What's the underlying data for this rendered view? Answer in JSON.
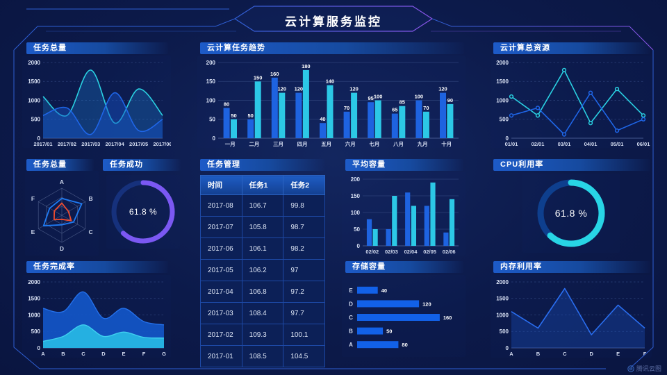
{
  "page": {
    "title": "云计算服务监控",
    "brand": "腾讯云图"
  },
  "panels": {
    "task_total_line": {
      "title": "任务总量"
    },
    "task_trend": {
      "title": "云计算任务趋势"
    },
    "total_resources": {
      "title": "云计算总资源"
    },
    "task_radar": {
      "title": "任务总量"
    },
    "task_success": {
      "title": "任务成功"
    },
    "task_table": {
      "title": "任务管理"
    },
    "avg_capacity": {
      "title": "平均容量"
    },
    "cpu_usage": {
      "title": "CPU利用率"
    },
    "completion": {
      "title": "任务完成率"
    },
    "storage": {
      "title": "存储容量"
    },
    "memory": {
      "title": "内存利用率"
    }
  },
  "colors": {
    "blue": "#1e63e0",
    "cyan": "#2cc8e6",
    "purple": "#7b58f2",
    "frame": "#2e5ed2",
    "bg": "#0c1a4a"
  },
  "table": {
    "headers": [
      "时间",
      "任务1",
      "任务2"
    ],
    "rows": [
      [
        "2017-08",
        "106.7",
        "99.8"
      ],
      [
        "2017-07",
        "105.8",
        "98.7"
      ],
      [
        "2017-06",
        "106.1",
        "98.2"
      ],
      [
        "2017-05",
        "106.2",
        "97"
      ],
      [
        "2017-04",
        "106.8",
        "97.2"
      ],
      [
        "2017-03",
        "108.4",
        "97.7"
      ],
      [
        "2017-02",
        "109.3",
        "100.1"
      ],
      [
        "2017-01",
        "108.5",
        "104.5"
      ]
    ]
  },
  "chart_data": [
    {
      "id": "task_total_line",
      "type": "area",
      "title": "任务总量",
      "smooth": true,
      "mr": 12,
      "x": [
        "2017/01",
        "2017/02",
        "2017/03",
        "2017/04",
        "2017/05",
        "2017/06"
      ],
      "series": [
        {
          "name": "series-cyan",
          "color": "#2ad1e2",
          "fill": "rgba(30,130,215,0.30)",
          "values": [
            1100,
            600,
            1800,
            400,
            1300,
            600
          ]
        },
        {
          "name": "series-blue",
          "color": "#1f66e8",
          "fill": "rgba(22,82,200,0.45)",
          "values": [
            600,
            800,
            100,
            1200,
            200,
            500
          ]
        }
      ],
      "ylim": [
        0,
        2000
      ],
      "yticks": [
        0,
        500,
        1000,
        1500,
        2000
      ]
    },
    {
      "id": "task_trend_bars",
      "type": "bar",
      "title": "云计算任务趋势",
      "labels": true,
      "categories": [
        "一月",
        "二月",
        "三月",
        "四月",
        "五月",
        "六月",
        "七月",
        "八月",
        "九月",
        "十月"
      ],
      "series": [
        {
          "name": "series-blue",
          "color": "#1e63e0",
          "values": [
            80,
            50,
            160,
            120,
            40,
            70,
            95,
            65,
            100,
            120
          ]
        },
        {
          "name": "series-cyan",
          "color": "#2cc8e6",
          "values": [
            50,
            150,
            120,
            180,
            140,
            120,
            100,
            85,
            70,
            90
          ]
        }
      ],
      "ylim": [
        0,
        200
      ],
      "yticks": [
        0,
        50,
        100,
        150,
        200
      ]
    },
    {
      "id": "total_resources_line",
      "type": "line",
      "title": "云计算总资源",
      "markers": true,
      "mr": 12,
      "x": [
        "01/01",
        "02/01",
        "03/01",
        "04/01",
        "05/01",
        "06/01"
      ],
      "series": [
        {
          "name": "series-cyan",
          "color": "#2ad1e2",
          "values": [
            1100,
            600,
            1800,
            400,
            1300,
            600
          ]
        },
        {
          "name": "series-blue",
          "color": "#1f66e8",
          "values": [
            600,
            800,
            100,
            1200,
            200,
            500
          ]
        }
      ],
      "ylim": [
        0,
        2000
      ],
      "yticks": [
        0,
        500,
        1000,
        1500,
        2000
      ]
    },
    {
      "id": "task_radar",
      "type": "radar",
      "title": "任务总量",
      "axes": [
        "A",
        "B",
        "C",
        "D",
        "E",
        "F"
      ],
      "max": 100,
      "series": [
        {
          "name": "blue-polygon",
          "color": "#1f7bf4",
          "values": [
            62,
            85,
            50,
            35,
            78,
            52
          ]
        },
        {
          "name": "red-polygon",
          "color": "#ef4b2e",
          "values": [
            45,
            28,
            40,
            15,
            33,
            32
          ]
        }
      ]
    },
    {
      "id": "task_success_donut",
      "type": "donut",
      "title": "任务成功",
      "value": 61.8,
      "label": "61.8 %",
      "arc": "#7b58f2",
      "track": "#16317c",
      "thick": 7,
      "font": 12
    },
    {
      "id": "avg_capacity_bars",
      "type": "bar",
      "title": "平均容量",
      "labels": false,
      "categories": [
        "02/02",
        "02/03",
        "02/04",
        "02/05",
        "02/06"
      ],
      "series": [
        {
          "name": "series-blue",
          "color": "#1e63e0",
          "values": [
            80,
            50,
            160,
            120,
            40
          ]
        },
        {
          "name": "series-cyan",
          "color": "#2cc8e6",
          "values": [
            50,
            150,
            120,
            190,
            140
          ]
        }
      ],
      "ylim": [
        0,
        200
      ],
      "yticks": [
        0,
        50,
        100,
        150,
        200
      ]
    },
    {
      "id": "cpu_donut",
      "type": "donut",
      "title": "CPU利用率",
      "value": 61.8,
      "label": "61.8 %",
      "arc": "#28d5e5",
      "track": "#0e3f8e",
      "thick": 9,
      "font": 14
    },
    {
      "id": "completion_area",
      "type": "stacked_area",
      "title": "任务完成率",
      "smooth": true,
      "x": [
        "A",
        "B",
        "C",
        "D",
        "E",
        "F",
        "G"
      ],
      "series": [
        {
          "name": "outer-blue",
          "color": "#1356c8",
          "line": "#2470ea",
          "values": [
            1200,
            1100,
            1700,
            900,
            1200,
            800,
            700
          ]
        },
        {
          "name": "inner-cyan",
          "color": "#27b8e4",
          "line": "#3fd0f0",
          "values": [
            200,
            350,
            700,
            350,
            480,
            320,
            300
          ]
        }
      ],
      "ylim": [
        0,
        2000
      ],
      "yticks": [
        0,
        500,
        1000,
        1500,
        2000
      ]
    },
    {
      "id": "storage_hbars",
      "type": "hbar",
      "title": "存储容量",
      "categories": [
        "E",
        "D",
        "C",
        "B",
        "A"
      ],
      "values": [
        40,
        120,
        160,
        50,
        80
      ],
      "color": "#1261e8",
      "xmax": 175
    },
    {
      "id": "memory_line",
      "type": "line",
      "title": "内存利用率",
      "x": [
        "A",
        "B",
        "C",
        "D",
        "E",
        "F"
      ],
      "series": [
        {
          "name": "series-blue",
          "color": "#2a6ef0",
          "fill": "rgba(25,80,190,0.35)",
          "values": [
            1100,
            600,
            1800,
            400,
            1300,
            600
          ]
        }
      ],
      "ylim": [
        0,
        2000
      ],
      "yticks": [
        0,
        500,
        1000,
        1500,
        2000
      ]
    }
  ]
}
